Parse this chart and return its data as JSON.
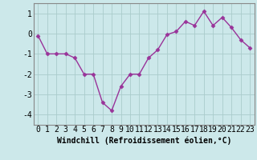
{
  "x": [
    0,
    1,
    2,
    3,
    4,
    5,
    6,
    7,
    8,
    9,
    10,
    11,
    12,
    13,
    14,
    15,
    16,
    17,
    18,
    19,
    20,
    21,
    22,
    23
  ],
  "y": [
    -0.1,
    -1.0,
    -1.0,
    -1.0,
    -1.2,
    -2.0,
    -2.0,
    -3.4,
    -3.8,
    -2.6,
    -2.0,
    -2.0,
    -1.2,
    -0.8,
    -0.05,
    0.1,
    0.6,
    0.4,
    1.1,
    0.4,
    0.8,
    0.3,
    -0.3,
    -0.7
  ],
  "line_color": "#993399",
  "marker": "D",
  "marker_size": 2.5,
  "bg_color": "#cce8ea",
  "grid_color": "#aacccc",
  "xlabel": "Windchill (Refroidissement éolien,°C)",
  "xlim": [
    -0.5,
    23.5
  ],
  "ylim": [
    -4.5,
    1.5
  ],
  "yticks": [
    -4,
    -3,
    -2,
    -1,
    0,
    1
  ],
  "xtick_labels": [
    "0",
    "1",
    "2",
    "3",
    "4",
    "5",
    "6",
    "7",
    "8",
    "9",
    "10",
    "11",
    "12",
    "13",
    "14",
    "15",
    "16",
    "17",
    "18",
    "19",
    "20",
    "21",
    "22",
    "23"
  ],
  "xlabel_fontsize": 7,
  "tick_fontsize": 7,
  "line_width": 1.0
}
